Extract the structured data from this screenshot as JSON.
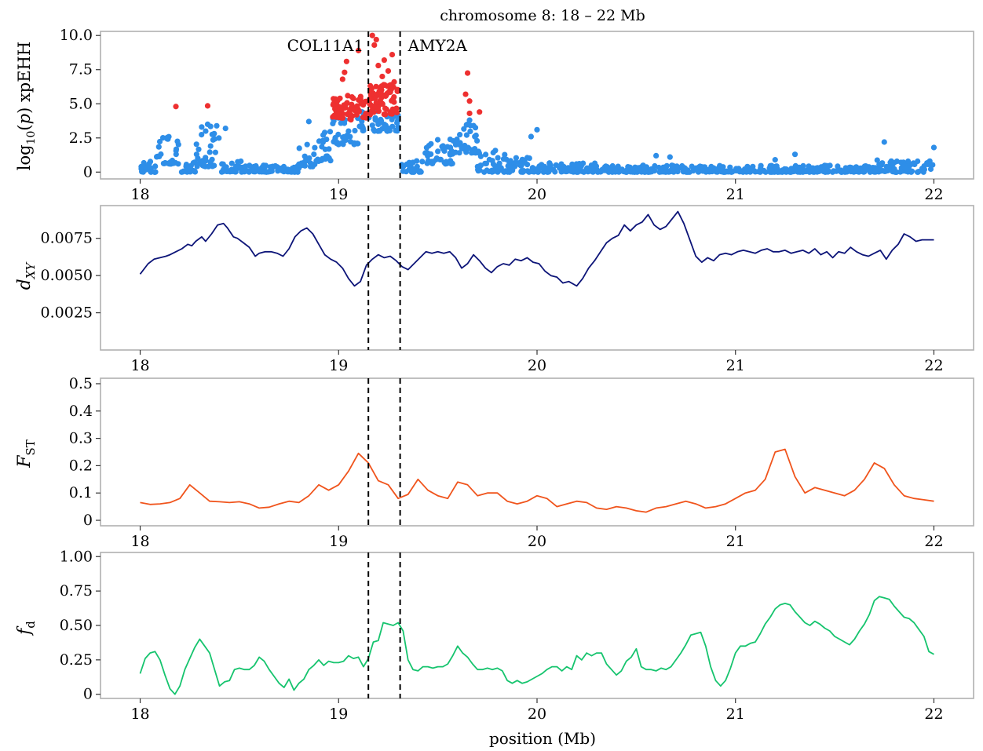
{
  "chart_data": {
    "type": "scatter",
    "title": "chromosome 8: 18 – 22 Mb",
    "xlabel": "position (Mb)",
    "xlim": [
      17.8,
      22.2
    ],
    "xticks": [
      "18",
      "19",
      "20",
      "21",
      "22"
    ],
    "genes": [
      {
        "name": "COL11A1",
        "position": 19.15
      },
      {
        "name": "AMY2A",
        "position": 19.31
      }
    ],
    "colors": {
      "blue": "#2e8ee8",
      "red": "#ee3030",
      "navy": "#0c1478",
      "orange": "#f0541c",
      "green": "#16c46e"
    },
    "panels": [
      {
        "id": "xpehh",
        "type": "scatter",
        "ylabel": "log10(p) xpEHH",
        "ylim": [
          -0.5,
          10.3
        ],
        "yticks": [
          "10.0",
          "7.5",
          "5.0",
          "2.5",
          "0"
        ],
        "ytick_values": [
          10,
          7.5,
          5,
          2.5,
          0
        ],
        "segments": [
          [
            18.0,
            18.08,
            0.0,
            0.9
          ],
          [
            18.08,
            18.2,
            0.6,
            2.6
          ],
          [
            18.2,
            18.28,
            0.0,
            1.0
          ],
          [
            18.28,
            18.4,
            0.4,
            3.4
          ],
          [
            18.4,
            18.52,
            0.0,
            0.8
          ],
          [
            18.52,
            18.8,
            0.0,
            0.5
          ],
          [
            18.8,
            18.88,
            0.4,
            2.2
          ],
          [
            18.88,
            18.97,
            0.8,
            3.0
          ],
          [
            18.97,
            19.1,
            2.0,
            4.2
          ],
          [
            19.1,
            19.15,
            3.0,
            4.6
          ],
          [
            19.15,
            19.3,
            3.0,
            4.6
          ],
          [
            19.31,
            19.42,
            0.0,
            0.9
          ],
          [
            19.42,
            19.58,
            0.6,
            2.4
          ],
          [
            19.58,
            19.7,
            1.4,
            3.6
          ],
          [
            19.7,
            19.85,
            0.0,
            1.8
          ],
          [
            19.85,
            20.0,
            0.0,
            1.3
          ],
          [
            20.0,
            20.3,
            0.0,
            0.7
          ],
          [
            20.3,
            21.7,
            0.0,
            0.5
          ],
          [
            21.7,
            22.0,
            0.0,
            0.9
          ]
        ],
        "blue_points": [
          [
            18.34,
            3.5
          ],
          [
            18.31,
            3.3
          ],
          [
            18.43,
            3.2
          ],
          [
            18.33,
            3.0
          ],
          [
            18.85,
            3.7
          ],
          [
            18.93,
            2.9
          ],
          [
            19.05,
            3.0
          ],
          [
            19.2,
            3.5
          ],
          [
            19.3,
            3.3
          ],
          [
            19.66,
            3.8
          ],
          [
            19.65,
            3.5
          ],
          [
            19.68,
            3.4
          ],
          [
            20.0,
            3.1
          ],
          [
            19.97,
            2.6
          ],
          [
            20.67,
            1.1
          ],
          [
            21.3,
            1.3
          ],
          [
            21.75,
            2.2
          ],
          [
            22.0,
            1.8
          ],
          [
            20.6,
            1.2
          ],
          [
            21.2,
            0.9
          ]
        ],
        "red_points": [
          [
            18.18,
            4.8
          ],
          [
            18.34,
            4.85
          ],
          [
            19.1,
            8.9
          ],
          [
            19.04,
            8.1
          ],
          [
            19.03,
            7.3
          ],
          [
            19.02,
            6.8
          ],
          [
            19.17,
            10.0
          ],
          [
            19.19,
            9.7
          ],
          [
            19.18,
            9.3
          ],
          [
            19.23,
            8.2
          ],
          [
            19.27,
            8.6
          ],
          [
            19.2,
            7.8
          ],
          [
            19.25,
            7.4
          ],
          [
            19.22,
            7.0
          ],
          [
            19.28,
            6.6
          ],
          [
            19.21,
            6.2
          ],
          [
            19.65,
            7.25
          ],
          [
            19.64,
            5.7
          ],
          [
            19.66,
            5.2
          ],
          [
            19.71,
            4.4
          ],
          [
            19.66,
            4.3
          ]
        ]
      },
      {
        "id": "dxy",
        "type": "line",
        "ylabel": "dXY",
        "ylim": [
          0.0,
          0.0097
        ],
        "yticks": [
          "0.0075",
          "0.0050",
          "0.0025"
        ],
        "ytick_values": [
          0.0075,
          0.005,
          0.0025
        ],
        "x": [
          18.0,
          18.04,
          18.07,
          18.1,
          18.13,
          18.15,
          18.18,
          18.21,
          18.24,
          18.26,
          18.28,
          18.31,
          18.33,
          18.36,
          18.39,
          18.42,
          18.44,
          18.47,
          18.49,
          18.52,
          18.55,
          18.58,
          18.6,
          18.63,
          18.66,
          18.69,
          18.72,
          18.75,
          18.78,
          18.81,
          18.84,
          18.87,
          18.9,
          18.93,
          18.96,
          18.99,
          19.02,
          19.05,
          19.08,
          19.11,
          19.14,
          19.17,
          19.2,
          19.23,
          19.26,
          19.29,
          19.32,
          19.35,
          19.38,
          19.41,
          19.44,
          19.47,
          19.5,
          19.53,
          19.56,
          19.59,
          19.62,
          19.65,
          19.68,
          19.71,
          19.74,
          19.77,
          19.8,
          19.83,
          19.86,
          19.89,
          19.92,
          19.95,
          19.98,
          20.01,
          20.04,
          20.07,
          20.1,
          20.13,
          20.16,
          20.2,
          20.23,
          20.26,
          20.29,
          20.32,
          20.35,
          20.38,
          20.41,
          20.44,
          20.47,
          20.5,
          20.53,
          20.56,
          20.59,
          20.62,
          20.65,
          20.68,
          20.71,
          20.74,
          20.77,
          20.8,
          20.83,
          20.86,
          20.89,
          20.92,
          20.95,
          20.98,
          21.01,
          21.04,
          21.07,
          21.1,
          21.13,
          21.16,
          21.19,
          21.22,
          21.25,
          21.28,
          21.31,
          21.34,
          21.37,
          21.4,
          21.43,
          21.46,
          21.49,
          21.52,
          21.55,
          21.58,
          21.61,
          21.64,
          21.67,
          21.7,
          21.73,
          21.76,
          21.79,
          21.82,
          21.85,
          21.88,
          21.91,
          21.94,
          21.97,
          22.0
        ],
        "y": [
          0.0051,
          0.0058,
          0.0061,
          0.0062,
          0.0063,
          0.0064,
          0.0066,
          0.0068,
          0.0071,
          0.007,
          0.0073,
          0.0076,
          0.0073,
          0.0078,
          0.0084,
          0.0085,
          0.0082,
          0.0076,
          0.0075,
          0.0072,
          0.0069,
          0.0063,
          0.0065,
          0.0066,
          0.0066,
          0.0065,
          0.0063,
          0.0068,
          0.0076,
          0.008,
          0.0082,
          0.0078,
          0.0071,
          0.0064,
          0.0061,
          0.0059,
          0.0055,
          0.0048,
          0.0043,
          0.0046,
          0.0057,
          0.0061,
          0.0064,
          0.0062,
          0.0063,
          0.006,
          0.0056,
          0.0054,
          0.0058,
          0.0062,
          0.0066,
          0.0065,
          0.0066,
          0.0065,
          0.0066,
          0.0062,
          0.0055,
          0.0058,
          0.0064,
          0.006,
          0.0055,
          0.0052,
          0.0056,
          0.0058,
          0.0057,
          0.0061,
          0.006,
          0.0062,
          0.0059,
          0.0058,
          0.0053,
          0.005,
          0.0049,
          0.0045,
          0.0046,
          0.0043,
          0.0048,
          0.0055,
          0.006,
          0.0066,
          0.0072,
          0.0075,
          0.0077,
          0.0084,
          0.008,
          0.0084,
          0.0086,
          0.0091,
          0.0084,
          0.0081,
          0.0083,
          0.0088,
          0.0093,
          0.0085,
          0.0074,
          0.0063,
          0.0059,
          0.0062,
          0.006,
          0.0064,
          0.0065,
          0.0064,
          0.0066,
          0.0067,
          0.0066,
          0.0065,
          0.0067,
          0.0068,
          0.0066,
          0.0066,
          0.0067,
          0.0065,
          0.0066,
          0.0067,
          0.0065,
          0.0068,
          0.0064,
          0.0066,
          0.0062,
          0.0066,
          0.0065,
          0.0069,
          0.0066,
          0.0064,
          0.0063,
          0.0065,
          0.0067,
          0.0061,
          0.0067,
          0.0071,
          0.0078,
          0.0076,
          0.0073,
          0.0074,
          0.0074,
          0.0074
        ]
      },
      {
        "id": "fst",
        "type": "line",
        "ylabel": "FST",
        "ylim": [
          -0.02,
          0.52
        ],
        "yticks": [
          "0.5",
          "0.4",
          "0.3",
          "0.2",
          "0.1",
          "0"
        ],
        "ytick_values": [
          0.5,
          0.4,
          0.3,
          0.2,
          0.1,
          0
        ],
        "x": [
          18.0,
          18.05,
          18.1,
          18.15,
          18.2,
          18.25,
          18.3,
          18.35,
          18.4,
          18.45,
          18.5,
          18.55,
          18.6,
          18.65,
          18.7,
          18.75,
          18.8,
          18.85,
          18.9,
          18.95,
          19.0,
          19.05,
          19.1,
          19.15,
          19.2,
          19.25,
          19.3,
          19.35,
          19.4,
          19.45,
          19.5,
          19.55,
          19.6,
          19.65,
          19.7,
          19.75,
          19.8,
          19.85,
          19.9,
          19.95,
          20.0,
          20.05,
          20.1,
          20.15,
          20.2,
          20.25,
          20.3,
          20.35,
          20.4,
          20.45,
          20.5,
          20.55,
          20.6,
          20.65,
          20.7,
          20.75,
          20.8,
          20.85,
          20.9,
          20.95,
          21.0,
          21.05,
          21.1,
          21.15,
          21.2,
          21.25,
          21.3,
          21.35,
          21.4,
          21.45,
          21.5,
          21.55,
          21.6,
          21.65,
          21.7,
          21.75,
          21.8,
          21.85,
          21.9,
          21.95,
          22.0
        ],
        "y": [
          0.065,
          0.058,
          0.06,
          0.065,
          0.08,
          0.13,
          0.1,
          0.07,
          0.068,
          0.065,
          0.068,
          0.06,
          0.045,
          0.048,
          0.06,
          0.07,
          0.065,
          0.09,
          0.13,
          0.11,
          0.13,
          0.18,
          0.245,
          0.21,
          0.145,
          0.13,
          0.08,
          0.095,
          0.15,
          0.11,
          0.09,
          0.08,
          0.14,
          0.13,
          0.09,
          0.1,
          0.1,
          0.07,
          0.06,
          0.07,
          0.09,
          0.08,
          0.05,
          0.06,
          0.07,
          0.065,
          0.045,
          0.04,
          0.05,
          0.045,
          0.035,
          0.03,
          0.045,
          0.05,
          0.06,
          0.07,
          0.06,
          0.045,
          0.05,
          0.06,
          0.08,
          0.1,
          0.11,
          0.15,
          0.25,
          0.26,
          0.16,
          0.1,
          0.12,
          0.11,
          0.1,
          0.09,
          0.11,
          0.15,
          0.21,
          0.19,
          0.13,
          0.09,
          0.08,
          0.075,
          0.07
        ]
      },
      {
        "id": "fd",
        "type": "line",
        "ylabel": "fd",
        "ylim": [
          -0.03,
          1.03
        ],
        "yticks": [
          "1.00",
          "0.75",
          "0.50",
          "0.25",
          "0"
        ],
        "ytick_values": [
          1.0,
          0.75,
          0.5,
          0.25,
          0
        ],
        "x": [
          18.0,
          18.025,
          18.05,
          18.075,
          18.1,
          18.125,
          18.15,
          18.175,
          18.2,
          18.225,
          18.25,
          18.275,
          18.3,
          18.325,
          18.35,
          18.375,
          18.4,
          18.425,
          18.45,
          18.475,
          18.5,
          18.525,
          18.55,
          18.575,
          18.6,
          18.625,
          18.65,
          18.675,
          18.7,
          18.725,
          18.75,
          18.775,
          18.8,
          18.825,
          18.85,
          18.875,
          18.9,
          18.925,
          18.95,
          18.975,
          19.0,
          19.025,
          19.05,
          19.075,
          19.1,
          19.125,
          19.15,
          19.175,
          19.2,
          19.225,
          19.25,
          19.275,
          19.3,
          19.325,
          19.35,
          19.375,
          19.4,
          19.425,
          19.45,
          19.475,
          19.5,
          19.525,
          19.55,
          19.575,
          19.6,
          19.625,
          19.65,
          19.675,
          19.7,
          19.725,
          19.75,
          19.775,
          19.8,
          19.825,
          19.85,
          19.875,
          19.9,
          19.925,
          19.95,
          19.975,
          20.0,
          20.025,
          20.05,
          20.075,
          20.1,
          20.125,
          20.15,
          20.175,
          20.2,
          20.225,
          20.25,
          20.275,
          20.3,
          20.325,
          20.35,
          20.375,
          20.4,
          20.425,
          20.45,
          20.475,
          20.5,
          20.525,
          20.55,
          20.575,
          20.6,
          20.625,
          20.65,
          20.675,
          20.7,
          20.725,
          20.75,
          20.775,
          20.8,
          20.825,
          20.85,
          20.875,
          20.9,
          20.925,
          20.95,
          20.975,
          21.0,
          21.025,
          21.05,
          21.075,
          21.1,
          21.125,
          21.15,
          21.175,
          21.2,
          21.225,
          21.25,
          21.275,
          21.3,
          21.325,
          21.35,
          21.375,
          21.4,
          21.425,
          21.45,
          21.475,
          21.5,
          21.525,
          21.55,
          21.575,
          21.6,
          21.625,
          21.65,
          21.675,
          21.7,
          21.725,
          21.75,
          21.775,
          21.8,
          21.825,
          21.85,
          21.875,
          21.9,
          21.925,
          21.95,
          21.975,
          22.0
        ],
        "y": [
          0.15,
          0.26,
          0.3,
          0.31,
          0.25,
          0.14,
          0.04,
          0.0,
          0.06,
          0.18,
          0.26,
          0.34,
          0.4,
          0.35,
          0.3,
          0.18,
          0.06,
          0.09,
          0.1,
          0.18,
          0.19,
          0.18,
          0.18,
          0.21,
          0.27,
          0.24,
          0.18,
          0.13,
          0.08,
          0.05,
          0.11,
          0.03,
          0.08,
          0.11,
          0.18,
          0.21,
          0.25,
          0.21,
          0.24,
          0.23,
          0.23,
          0.24,
          0.28,
          0.26,
          0.27,
          0.2,
          0.26,
          0.38,
          0.39,
          0.52,
          0.51,
          0.5,
          0.52,
          0.46,
          0.25,
          0.18,
          0.17,
          0.2,
          0.2,
          0.19,
          0.2,
          0.2,
          0.22,
          0.28,
          0.35,
          0.3,
          0.27,
          0.22,
          0.18,
          0.18,
          0.19,
          0.18,
          0.19,
          0.17,
          0.1,
          0.08,
          0.1,
          0.08,
          0.09,
          0.11,
          0.13,
          0.15,
          0.18,
          0.2,
          0.2,
          0.17,
          0.2,
          0.18,
          0.28,
          0.25,
          0.3,
          0.28,
          0.3,
          0.3,
          0.22,
          0.18,
          0.14,
          0.17,
          0.24,
          0.27,
          0.33,
          0.2,
          0.18,
          0.18,
          0.17,
          0.19,
          0.18,
          0.2,
          0.25,
          0.3,
          0.36,
          0.43,
          0.44,
          0.45,
          0.35,
          0.2,
          0.1,
          0.06,
          0.1,
          0.19,
          0.3,
          0.35,
          0.35,
          0.37,
          0.38,
          0.44,
          0.51,
          0.56,
          0.62,
          0.65,
          0.66,
          0.65,
          0.6,
          0.56,
          0.52,
          0.5,
          0.53,
          0.51,
          0.48,
          0.46,
          0.42,
          0.4,
          0.38,
          0.36,
          0.4,
          0.46,
          0.51,
          0.58,
          0.68,
          0.71,
          0.7,
          0.69,
          0.64,
          0.6,
          0.56,
          0.55,
          0.52,
          0.47,
          0.42,
          0.31,
          0.29
        ]
      }
    ]
  }
}
